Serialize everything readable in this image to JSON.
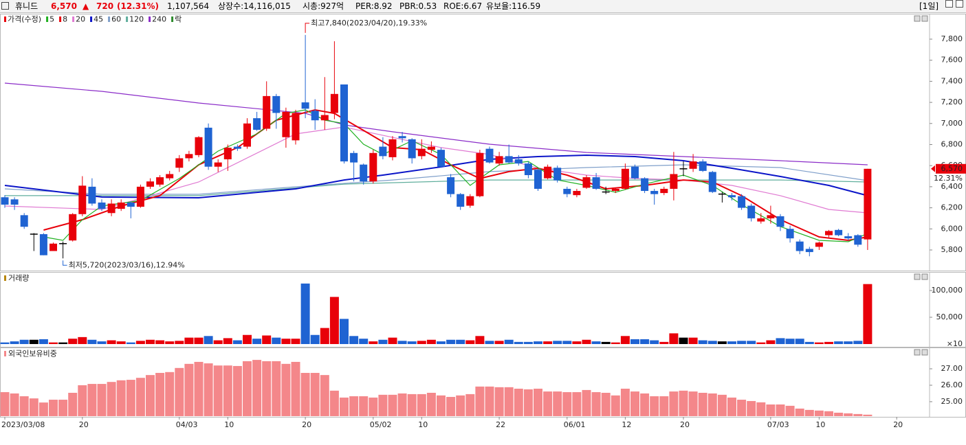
{
  "header": {
    "name": "휴니드",
    "price": "6,570",
    "arrow": "▲",
    "change": "720",
    "change_pct": "(12.31%)",
    "volume": "1,107,564",
    "listed": "상장수:14,116,015",
    "market_cap": "시총:927억",
    "per": "PER:8.92",
    "pbr": "PBR:0.53",
    "roe": "ROE:6.67",
    "reserve": "유보율:116.59",
    "period": "[1일]"
  },
  "chart_data": [
    {
      "type": "candlestick",
      "price_name": "가격(수정)",
      "up_color": "#e8000a",
      "down_color": "#1f63d2",
      "flat_color": "#000000",
      "extra_legend": {
        "name": "락",
        "color": "#2e8b2e"
      },
      "high_label": "최고7,840(2023/04/20),19.33%",
      "low_label": "최저5,720(2023/03/16),12.94%",
      "last_label": "6,570",
      "last_change_label": "12.31%",
      "categories": [
        "2023/03/08",
        null,
        null,
        null,
        null,
        null,
        null,
        null,
        "20",
        null,
        null,
        null,
        null,
        null,
        null,
        null,
        null,
        null,
        "04/03",
        null,
        null,
        null,
        null,
        "10",
        null,
        null,
        null,
        null,
        null,
        null,
        null,
        "20",
        null,
        null,
        null,
        null,
        null,
        null,
        "05/02",
        null,
        null,
        null,
        null,
        "10",
        null,
        null,
        null,
        null,
        null,
        null,
        null,
        "22",
        null,
        null,
        null,
        null,
        null,
        null,
        "06/01",
        null,
        null,
        null,
        null,
        null,
        "12",
        null,
        null,
        null,
        null,
        null,
        "20",
        null,
        null,
        null,
        null,
        null,
        null,
        null,
        null,
        "07/03",
        null,
        null,
        null,
        null,
        "10",
        null,
        null,
        null,
        null,
        null,
        null,
        null,
        "20"
      ],
      "open": [
        6300,
        6280,
        6130,
        5950,
        5950,
        5790,
        5860,
        5890,
        6140,
        6400,
        6250,
        6150,
        6190,
        6250,
        6210,
        6400,
        6420,
        6480,
        6580,
        6670,
        6700,
        6960,
        6590,
        6660,
        6780,
        6780,
        7050,
        6950,
        7260,
        6870,
        6840,
        7200,
        7120,
        7030,
        7100,
        7370,
        6720,
        6610,
        6450,
        6780,
        6680,
        6880,
        6850,
        6690,
        6750,
        6750,
        6490,
        6330,
        6220,
        6310,
        6760,
        6620,
        6690,
        6660,
        6620,
        6560,
        6480,
        6580,
        6380,
        6320,
        6390,
        6490,
        6350,
        6360,
        6380,
        6590,
        6480,
        6360,
        6340,
        6380,
        6570,
        6570,
        6640,
        6540,
        6330,
        6320,
        6310,
        6220,
        6070,
        6100,
        6120,
        6000,
        5880,
        5810,
        5830,
        5940,
        5990,
        5930,
        5940,
        5900,
        null,
        null,
        null
      ],
      "high": [
        6320,
        6300,
        6150,
        5960,
        5960,
        5870,
        5880,
        6150,
        6500,
        6480,
        6280,
        6280,
        6280,
        6260,
        6420,
        6480,
        6510,
        6550,
        6700,
        6740,
        6880,
        7000,
        6660,
        6800,
        6800,
        7050,
        7110,
        7400,
        7280,
        7150,
        7130,
        7840,
        7230,
        7440,
        7780,
        7370,
        6740,
        6620,
        6750,
        6870,
        6880,
        6920,
        6860,
        6850,
        6830,
        6770,
        6520,
        6340,
        6330,
        6750,
        6780,
        6730,
        6800,
        6700,
        6640,
        6570,
        6610,
        6600,
        6400,
        6380,
        6510,
        6530,
        6400,
        6390,
        6620,
        6610,
        6490,
        6380,
        6400,
        6730,
        6640,
        6710,
        6660,
        6550,
        6350,
        6340,
        6330,
        6240,
        6150,
        6220,
        6140,
        6030,
        5900,
        5830,
        5880,
        5990,
        6000,
        5960,
        5950,
        6570,
        null,
        null,
        null
      ],
      "low": [
        6200,
        6180,
        6000,
        5790,
        5750,
        5790,
        5720,
        5880,
        6120,
        6220,
        6170,
        6120,
        6170,
        6100,
        6200,
        6380,
        6400,
        6460,
        6540,
        6640,
        6680,
        6560,
        6540,
        6550,
        6740,
        6760,
        6930,
        6930,
        6950,
        6770,
        6800,
        7050,
        6940,
        6940,
        7040,
        6620,
        6450,
        6420,
        6430,
        6660,
        6650,
        6820,
        6620,
        6660,
        6720,
        6580,
        6300,
        6180,
        6200,
        6300,
        6620,
        6600,
        6620,
        6600,
        6480,
        6360,
        6470,
        6440,
        6300,
        6300,
        6380,
        6370,
        6330,
        6340,
        6370,
        6470,
        6340,
        6230,
        6320,
        6270,
        6500,
        6540,
        6540,
        6340,
        6250,
        6270,
        6180,
        6070,
        6050,
        6050,
        5980,
        5870,
        5760,
        5740,
        5800,
        5920,
        5930,
        5890,
        5830,
        5800,
        null,
        null,
        null
      ],
      "close": [
        6230,
        6230,
        6020,
        5950,
        5750,
        5860,
        5860,
        6140,
        6410,
        6240,
        6190,
        6240,
        6250,
        6210,
        6400,
        6450,
        6490,
        6520,
        6670,
        6710,
        6870,
        6590,
        6630,
        6770,
        6760,
        7000,
        6940,
        7260,
        7100,
        7110,
        7100,
        7140,
        7030,
        7080,
        7280,
        6640,
        6630,
        6450,
        6720,
        6690,
        6850,
        6860,
        6670,
        6760,
        6780,
        6590,
        6330,
        6210,
        6310,
        6720,
        6630,
        6690,
        6630,
        6620,
        6510,
        6380,
        6590,
        6460,
        6330,
        6360,
        6490,
        6380,
        6350,
        6380,
        6570,
        6480,
        6360,
        6330,
        6380,
        6520,
        6570,
        6640,
        6550,
        6350,
        6330,
        6300,
        6200,
        6100,
        6100,
        6130,
        6020,
        5910,
        5790,
        5780,
        5870,
        5980,
        5940,
        5910,
        5850,
        6570,
        null,
        null,
        null
      ],
      "series": [
        {
          "name": "5",
          "color": "#1fb01f",
          "x": [
            4,
            6,
            8,
            10,
            14,
            18,
            22,
            26,
            29,
            31,
            33,
            35,
            37,
            39,
            42,
            45,
            48,
            51,
            54,
            57,
            60,
            63,
            66,
            70,
            73,
            76,
            80,
            84,
            87,
            89
          ],
          "values": [
            5924,
            5891,
            6087,
            6217,
            6269,
            6478,
            6738,
            6901,
            7096,
            7129,
            7031,
            6999,
            6803,
            6706,
            6836,
            6706,
            6412,
            6608,
            6640,
            6464,
            6412,
            6347,
            6425,
            6510,
            6412,
            6230,
            6022,
            5891,
            5878,
            5956
          ]
        },
        {
          "name": "8",
          "color": "#e8000a",
          "x": [
            4,
            8,
            12,
            16,
            20,
            24,
            28,
            32,
            34,
            37,
            40,
            43,
            46,
            49,
            52,
            55,
            58,
            62,
            66,
            70,
            73,
            76,
            80,
            84,
            87,
            89
          ],
          "values": [
            5989,
            6087,
            6217,
            6315,
            6608,
            6771,
            7031,
            7129,
            7096,
            6934,
            6771,
            6751,
            6608,
            6478,
            6543,
            6575,
            6510,
            6380,
            6412,
            6464,
            6445,
            6315,
            6087,
            5924,
            5891,
            5924
          ]
        },
        {
          "name": "20",
          "color": "#e07ad2",
          "x": [
            0,
            10,
            20,
            30,
            35,
            40,
            45,
            50,
            55,
            60,
            65,
            70,
            75,
            80,
            85,
            89
          ],
          "values": [
            6217,
            6184,
            6445,
            6901,
            6966,
            6868,
            6771,
            6706,
            6575,
            6510,
            6478,
            6464,
            6412,
            6315,
            6184,
            6152
          ]
        },
        {
          "name": "45",
          "color": "#0a14c8",
          "x": [
            0,
            10,
            20,
            30,
            35,
            39,
            45,
            50,
            55,
            60,
            65,
            70,
            75,
            80,
            85,
            89
          ],
          "values": [
            6412,
            6302,
            6295,
            6380,
            6464,
            6510,
            6588,
            6660,
            6686,
            6699,
            6686,
            6647,
            6575,
            6497,
            6412,
            6315
          ]
        },
        {
          "name": "60",
          "color": "#7f9fca",
          "x": [
            0,
            10,
            20,
            30,
            40,
            50,
            60,
            70,
            80,
            89
          ],
          "values": [
            6380,
            6328,
            6328,
            6399,
            6464,
            6543,
            6582,
            6608,
            6582,
            6458
          ]
        },
        {
          "name": "120",
          "color": "#5fae9c",
          "x": [
            0,
            20,
            35,
            50,
            60,
            70,
            80,
            89
          ],
          "values": [
            6315,
            6315,
            6425,
            6464,
            6464,
            6464,
            6464,
            6445
          ]
        },
        {
          "name": "240",
          "color": "#8a2bc8",
          "x": [
            0,
            10,
            20,
            31,
            35,
            40,
            50,
            60,
            70,
            80,
            89
          ],
          "values": [
            7383,
            7305,
            7194,
            7096,
            6986,
            6921,
            6803,
            6725,
            6686,
            6647,
            6608
          ]
        }
      ],
      "ylim": [
        5611,
        8041
      ],
      "yticks": [
        {
          "value": 5800,
          "label": "5,800"
        },
        {
          "value": 6000,
          "label": "6,000"
        },
        {
          "value": 6200,
          "label": "6,200"
        },
        {
          "value": 6400,
          "label": "6,400"
        },
        {
          "value": 6600,
          "label": "6,600"
        },
        {
          "value": 6800,
          "label": "6,800"
        },
        {
          "value": 7000,
          "label": "7,000"
        },
        {
          "value": 7200,
          "label": "7,200"
        },
        {
          "value": 7400,
          "label": "7,400"
        },
        {
          "value": 7600,
          "label": "7,600"
        },
        {
          "value": 7800,
          "label": "7,800"
        }
      ],
      "grid": false
    },
    {
      "type": "bar",
      "title": "거래량",
      "unit_label": "×10",
      "values": [
        3000,
        5000,
        8000,
        8000,
        9000,
        3000,
        3000,
        10000,
        13000,
        8000,
        5000,
        7000,
        5000,
        3000,
        6000,
        8000,
        7000,
        5000,
        6000,
        12000,
        12000,
        15000,
        7000,
        11000,
        7000,
        17000,
        10000,
        16000,
        12000,
        10000,
        10000,
        113000,
        17000,
        30000,
        88000,
        47000,
        15000,
        10000,
        5000,
        8000,
        12000,
        6000,
        5000,
        6000,
        8000,
        5000,
        8000,
        8000,
        7000,
        15000,
        6000,
        6000,
        8000,
        4000,
        4000,
        5000,
        5000,
        6000,
        6000,
        5000,
        8000,
        5000,
        4000,
        3000,
        15000,
        9000,
        9000,
        7000,
        4000,
        20000,
        12000,
        12000,
        7000,
        6000,
        5000,
        5000,
        6000,
        6000,
        3000,
        7000,
        11000,
        10000,
        10000,
        4000,
        3000,
        4000,
        5000,
        5000,
        6000,
        112000
      ],
      "ylim": [
        0,
        130800
      ],
      "yticks": [
        {
          "value": 50000,
          "label": "50,000"
        },
        {
          "value": 100000,
          "label": "100,000"
        }
      ]
    },
    {
      "type": "bar",
      "title": "외국인보유비중",
      "color": "#f4878a",
      "values": [
        25.58,
        25.5,
        25.33,
        25.2,
        24.95,
        25.12,
        25.12,
        25.54,
        26.0,
        26.08,
        26.08,
        26.2,
        26.3,
        26.33,
        26.45,
        26.62,
        26.75,
        26.8,
        27.05,
        27.3,
        27.42,
        27.33,
        27.2,
        27.2,
        27.17,
        27.46,
        27.54,
        27.46,
        27.46,
        27.3,
        27.42,
        26.75,
        26.75,
        26.62,
        25.67,
        25.25,
        25.33,
        25.33,
        25.25,
        25.42,
        25.42,
        25.5,
        25.46,
        25.46,
        25.54,
        25.38,
        25.29,
        25.38,
        25.46,
        25.92,
        25.92,
        25.88,
        25.88,
        25.79,
        25.75,
        25.79,
        25.62,
        25.62,
        25.58,
        25.58,
        25.71,
        25.58,
        25.54,
        25.38,
        25.79,
        25.62,
        25.5,
        25.33,
        25.33,
        25.62,
        25.67,
        25.62,
        25.54,
        25.5,
        25.42,
        25.25,
        25.12,
        25.04,
        24.96,
        24.83,
        24.83,
        24.75,
        24.58,
        24.5,
        24.46,
        24.42,
        24.33,
        24.29,
        24.25,
        24.21
      ],
      "ylim": [
        24.12,
        28.17
      ],
      "yticks": [
        {
          "value": 25,
          "label": "25.00"
        },
        {
          "value": 26,
          "label": "26.00"
        },
        {
          "value": 27,
          "label": "27.00"
        }
      ]
    }
  ]
}
